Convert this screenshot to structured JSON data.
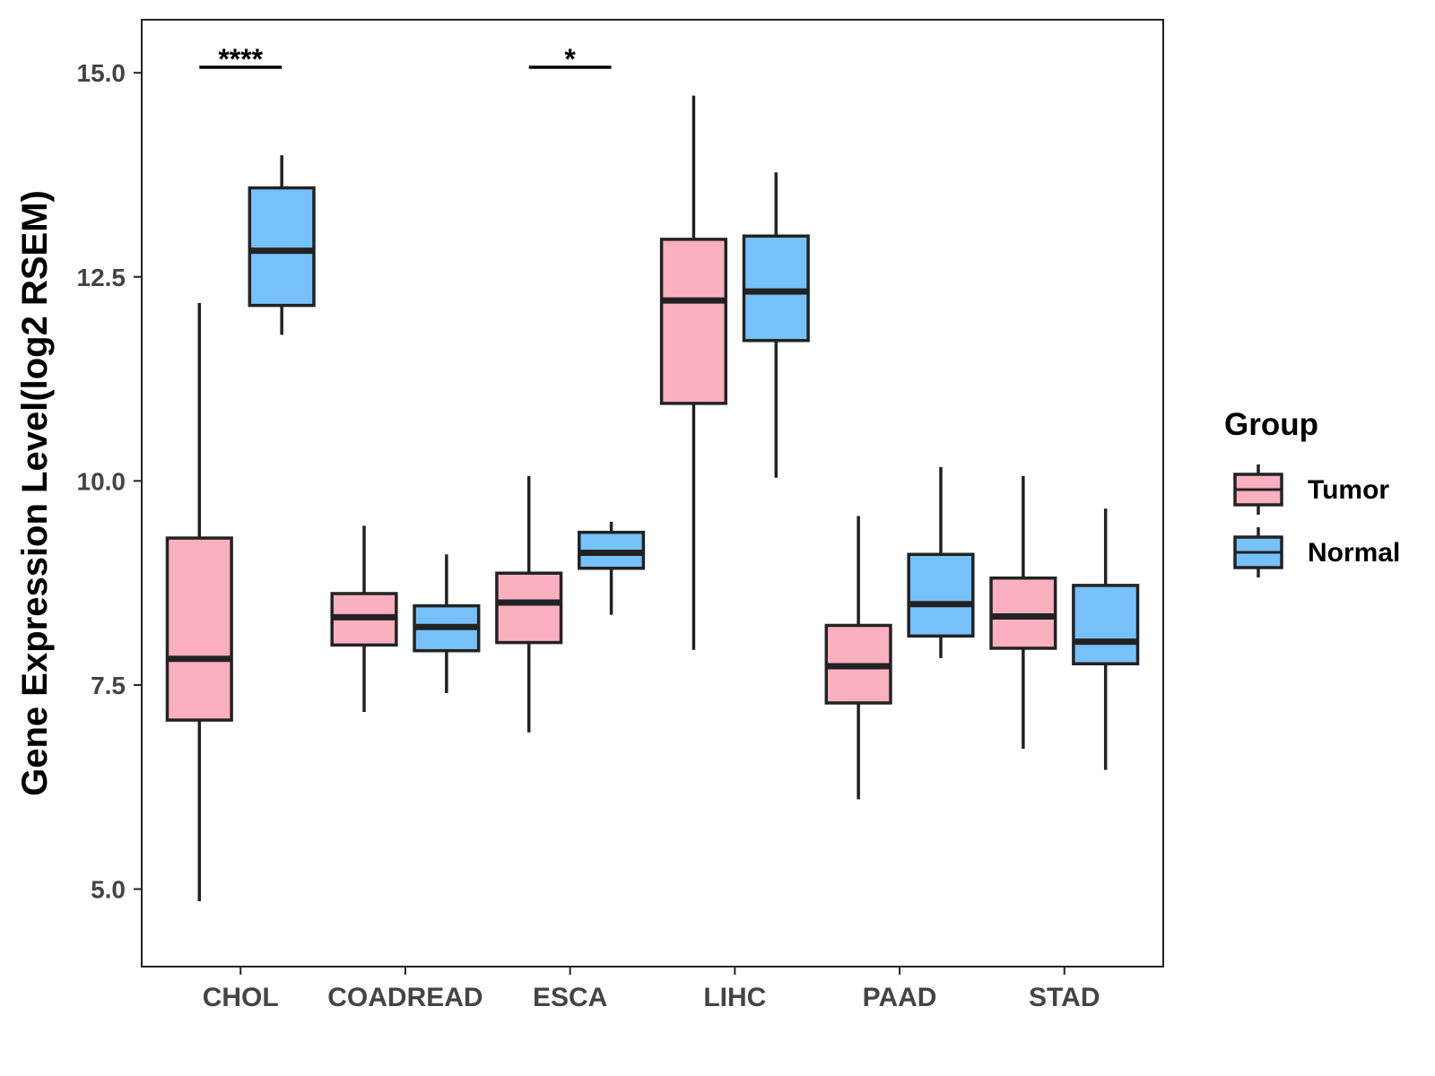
{
  "chart_data": {
    "type": "boxplot",
    "title": "",
    "xlabel": "",
    "ylabel": "Gene Expression Level(log2 RSEM)",
    "ylim": [
      4.05,
      15.65
    ],
    "yticks": [
      5.0,
      7.5,
      10.0,
      12.5,
      15.0
    ],
    "ytick_labels": [
      "5.0",
      "7.5",
      "10.0",
      "12.5",
      "15.0"
    ],
    "grid": false,
    "categories": [
      "CHOL",
      "COADREAD",
      "ESCA",
      "LIHC",
      "PAAD",
      "STAD"
    ],
    "legend": {
      "title": "Group",
      "position": "right",
      "entries": [
        "Tumor",
        "Normal"
      ]
    },
    "colors": {
      "Tumor": "#fbb0c0",
      "Normal": "#76c1f9",
      "outline": "#222222",
      "axis": "#222222"
    },
    "series": [
      {
        "name": "Tumor",
        "boxes": [
          {
            "min": 4.85,
            "q1": 7.07,
            "median": 7.82,
            "q3": 9.3,
            "max": 12.18
          },
          {
            "min": 7.17,
            "q1": 7.99,
            "median": 8.33,
            "q3": 8.62,
            "max": 9.45
          },
          {
            "min": 6.92,
            "q1": 8.02,
            "median": 8.51,
            "q3": 8.87,
            "max": 10.06
          },
          {
            "min": 7.93,
            "q1": 10.95,
            "median": 12.21,
            "q3": 12.96,
            "max": 14.72
          },
          {
            "min": 6.1,
            "q1": 7.28,
            "median": 7.73,
            "q3": 8.23,
            "max": 9.57
          },
          {
            "min": 6.72,
            "q1": 7.95,
            "median": 8.34,
            "q3": 8.81,
            "max": 10.06
          }
        ]
      },
      {
        "name": "Normal",
        "boxes": [
          {
            "min": 11.79,
            "q1": 12.15,
            "median": 12.82,
            "q3": 13.59,
            "max": 13.99
          },
          {
            "min": 7.4,
            "q1": 7.92,
            "median": 8.21,
            "q3": 8.47,
            "max": 9.1
          },
          {
            "min": 8.36,
            "q1": 8.93,
            "median": 9.12,
            "q3": 9.37,
            "max": 9.5
          },
          {
            "min": 10.04,
            "q1": 11.72,
            "median": 12.32,
            "q3": 13.0,
            "max": 13.78
          },
          {
            "min": 7.83,
            "q1": 8.1,
            "median": 8.49,
            "q3": 9.1,
            "max": 10.17
          },
          {
            "min": 6.46,
            "q1": 7.76,
            "median": 8.03,
            "q3": 8.72,
            "max": 9.66
          }
        ]
      }
    ],
    "significance": [
      {
        "category": "CHOL",
        "label": "****"
      },
      {
        "category": "ESCA",
        "label": "*"
      }
    ]
  }
}
